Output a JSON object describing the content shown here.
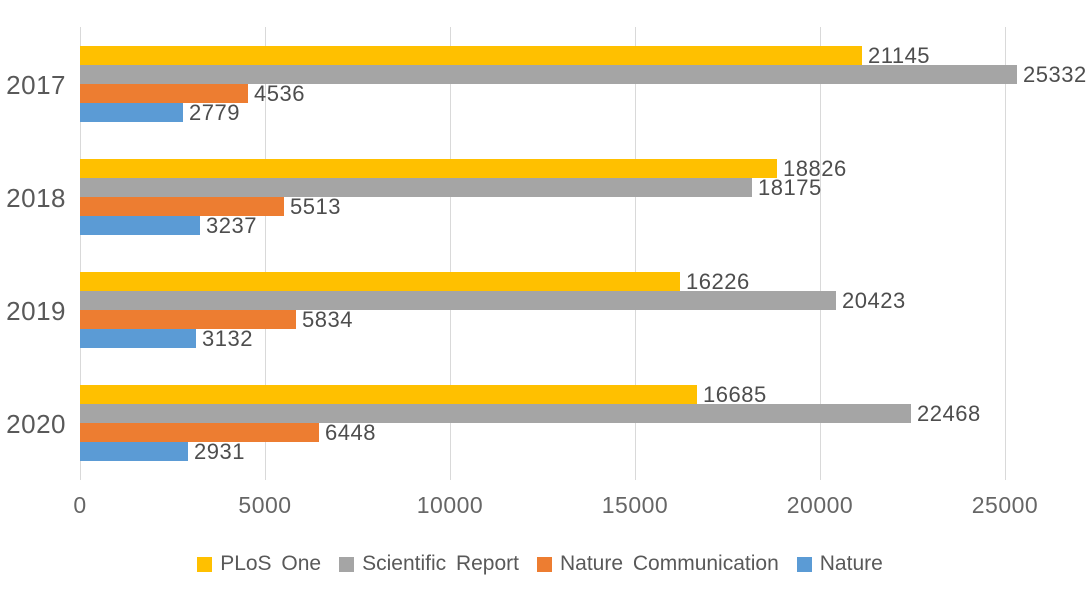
{
  "chart_data": {
    "type": "bar",
    "orientation": "horizontal",
    "title": "",
    "xlabel": "",
    "ylabel": "",
    "categories": [
      "2017",
      "2018",
      "2019",
      "2020"
    ],
    "series": [
      {
        "name": "PLoS One",
        "color": "#FFC000",
        "values": [
          21145,
          18826,
          16226,
          16685
        ]
      },
      {
        "name": "Scientific Report",
        "color": "#A5A5A5",
        "values": [
          25332,
          18175,
          20423,
          22468
        ]
      },
      {
        "name": "Nature Communication",
        "color": "#ED7D31",
        "values": [
          4536,
          5513,
          5834,
          6448
        ]
      },
      {
        "name": "Nature",
        "color": "#5B9BD5",
        "values": [
          2779,
          3237,
          3132,
          2931
        ]
      }
    ],
    "x_ticks": [
      0,
      5000,
      10000,
      15000,
      20000,
      25000
    ],
    "xlim": [
      0,
      25000
    ],
    "grid": "vertical",
    "data_labels": true,
    "legend_position": "bottom"
  },
  "colors": {
    "gridline": "#D9D9D9",
    "axis_text": "#666666",
    "category_text": "#595959",
    "data_label_text": "#4d4d4d",
    "legend_text": "#595959",
    "background": "#FFFFFF"
  }
}
